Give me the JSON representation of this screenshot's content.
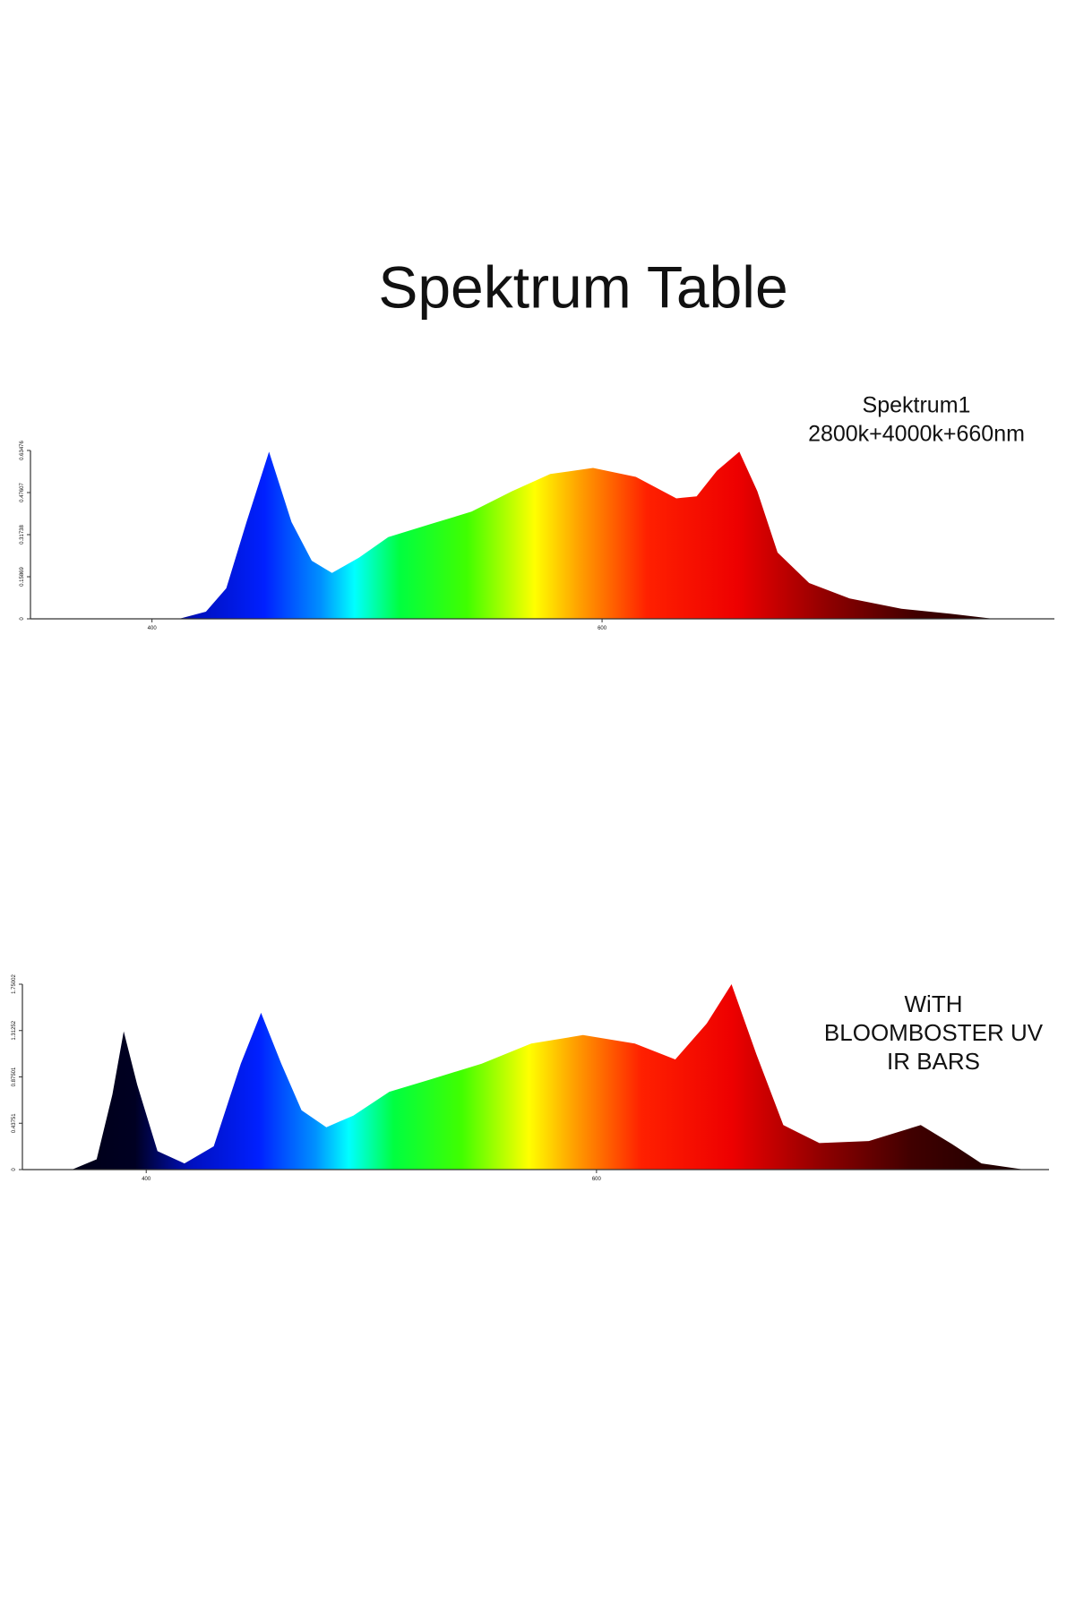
{
  "title": "Spektrum Table",
  "chart_data": [
    {
      "type": "area",
      "annotation": [
        "Spektrum1",
        "2800k+4000k+660nm"
      ],
      "x": [
        412,
        424,
        433,
        442,
        452,
        462,
        471,
        480,
        492,
        505,
        524,
        542,
        560,
        577,
        596,
        615,
        633,
        642,
        651,
        661,
        669,
        678,
        692,
        710,
        733,
        755,
        774
      ],
      "values": [
        0,
        0.027,
        0.115,
        0.365,
        0.63,
        0.365,
        0.219,
        0.173,
        0.231,
        0.308,
        0.358,
        0.404,
        0.481,
        0.546,
        0.569,
        0.535,
        0.454,
        0.462,
        0.558,
        0.63,
        0.481,
        0.25,
        0.135,
        0.077,
        0.038,
        0.019,
        0
      ],
      "xlim": [
        346,
        801
      ],
      "xticks": [
        400,
        600
      ],
      "ylim": [
        0,
        0.63476
      ],
      "yticks": [
        0,
        0.15869,
        0.31738,
        0.47607,
        0.63476
      ]
    },
    {
      "type": "area",
      "annotation": [
        "WiTH",
        "BLOOMBOSTER UV",
        "IR BARS"
      ],
      "x": [
        367,
        378,
        385,
        390,
        396,
        405,
        417,
        430,
        442,
        451,
        460,
        469,
        480,
        492,
        508,
        526,
        549,
        571,
        594,
        617,
        635,
        649,
        660,
        671,
        683,
        699,
        721,
        744,
        758,
        771,
        790
      ],
      "values": [
        0,
        0.097,
        0.71,
        1.305,
        0.8,
        0.174,
        0.058,
        0.22,
        1.0,
        1.48,
        1.0,
        0.56,
        0.4,
        0.51,
        0.735,
        0.85,
        1.0,
        1.19,
        1.27,
        1.19,
        1.04,
        1.38,
        1.75,
        1.09,
        0.42,
        0.25,
        0.27,
        0.42,
        0.24,
        0.058,
        0
      ],
      "xlim": [
        345,
        801
      ],
      "xticks": [
        400,
        600
      ],
      "ylim": [
        0,
        1.75002
      ],
      "yticks": [
        0,
        0.43751,
        0.87501,
        1.31252,
        1.75002
      ]
    }
  ]
}
